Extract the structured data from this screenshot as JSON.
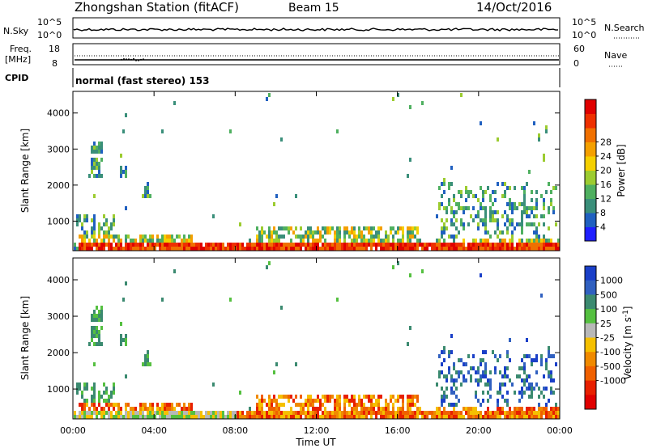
{
  "header": {
    "station": "Zhongshan Station (fitACF)",
    "beam": "Beam 15",
    "date": "14/Oct/2016"
  },
  "top_panels": {
    "nsky_label": "N.Sky",
    "nsky_ticks": [
      "10^5",
      "10^0"
    ],
    "nsearch_label": "N.Search",
    "nsearch_ticks": [
      "10^5",
      "10^0"
    ],
    "freq_label": "Freq.",
    "freq_unit": "[MHz]",
    "freq_ticks": [
      "18",
      "8"
    ],
    "nave_label": "Nave",
    "nave_ticks": [
      "60",
      "0"
    ],
    "cpid_label": "CPID",
    "cpid_text": "normal (fast stereo) 153"
  },
  "chart_data": [
    {
      "type": "heatmap",
      "name_id": "power",
      "xlabel": "Time UT",
      "ylabel": "Slant Range [km]",
      "x_ticks": [
        "00:00",
        "04:00",
        "08:00",
        "12:00",
        "16:00",
        "20:00",
        "00:00"
      ],
      "x_range": [
        0,
        24
      ],
      "y_ticks": [
        1000,
        2000,
        3000,
        4000
      ],
      "y_range": [
        180,
        4600
      ],
      "colorbar_label": "Power [dB]",
      "colorbar_ticks": [
        "4",
        "8",
        "12",
        "16",
        "20",
        "24",
        "28"
      ],
      "colorbar_colors": [
        "#1f1fff",
        "#2060c0",
        "#3a8f7a",
        "#4fb060",
        "#9ccc30",
        "#f5d000",
        "#f4a000",
        "#f07000",
        "#ee3000",
        "#e00000"
      ]
    },
    {
      "type": "heatmap",
      "name_id": "velocity",
      "xlabel": "Time UT",
      "ylabel": "Slant Range [km]",
      "x_ticks": [
        "00:00",
        "04:00",
        "08:00",
        "12:00",
        "16:00",
        "20:00",
        "00:00"
      ],
      "x_range": [
        0,
        24
      ],
      "y_ticks": [
        1000,
        2000,
        3000,
        4000
      ],
      "y_range": [
        180,
        4600
      ],
      "colorbar_label": "Velocity [m s",
      "colorbar_label_sup": "-1",
      "colorbar_ticks": [
        "1000",
        "500",
        "100",
        "25",
        "-25",
        "-100",
        "-500",
        "-1000"
      ],
      "colorbar_colors": [
        "#1a3fc8",
        "#3060c0",
        "#3b8a70",
        "#55c040",
        "#b8b8b8",
        "#f5c000",
        "#f08a00",
        "#f06000",
        "#e82000",
        "#e00000"
      ]
    }
  ]
}
